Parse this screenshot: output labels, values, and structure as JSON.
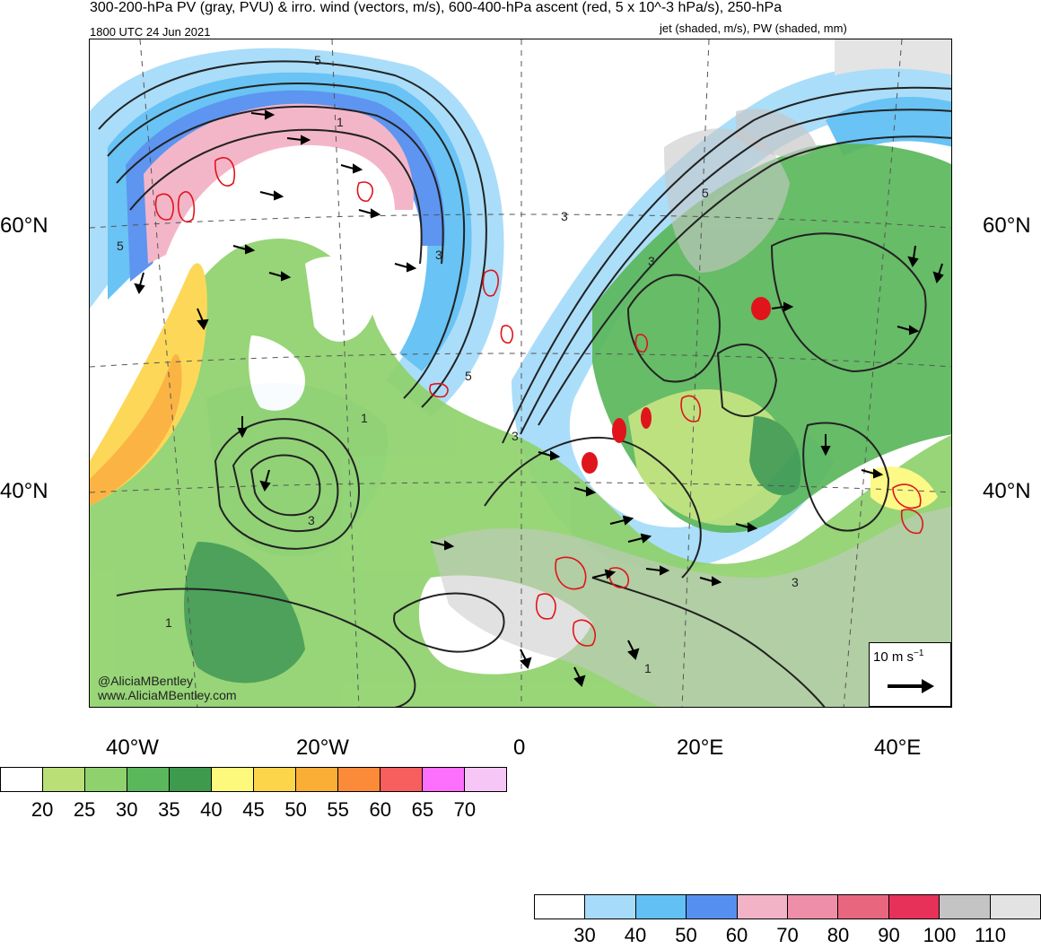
{
  "header": {
    "title_line1": "300-200-hPa PV (gray, PVU) & irro. wind (vectors, m/s), 600-400-hPa ascent (red, 5 x 10^-3 hPa/s), 250-hPa",
    "valid_time": "1800 UTC 24 Jun 2021",
    "title_line2": "jet (shaded, m/s), PW (shaded, mm)"
  },
  "axes": {
    "lat_left_60": "60°N",
    "lat_left_40": "40°N",
    "lat_right_60": "60°N",
    "lat_right_40": "40°N",
    "lon_40w": "40°W",
    "lon_20w": "20°W",
    "lon_0": "0",
    "lon_20e": "20°E",
    "lon_40e": "40°E"
  },
  "credits": {
    "handle": "@AliciaMBentley",
    "website": "www.AliciaMBentley.com"
  },
  "reference_vector": {
    "label": "10 m s",
    "exponent": "−1"
  },
  "contour_labels": [
    "5",
    "1",
    "5",
    "3",
    "5",
    "3",
    "3",
    "5",
    "1",
    "3",
    "3",
    "1",
    "1",
    "3"
  ],
  "colors": {
    "pw_20": "#ffffff",
    "pw_25": "#b9df76",
    "pw_30": "#8fd26d",
    "pw_35": "#5bb75b",
    "pw_40": "#3e9a4d",
    "pw_45": "#fcf97d",
    "pw_50": "#fdd54a",
    "pw_55": "#fbae35",
    "pw_60": "#fb8a39",
    "pw_65": "#f75e5e",
    "pw_70": "#fd6ffd",
    "pw_70p": "#f6c6f6",
    "jet_30": "#a6dcf9",
    "jet_40": "#62c0f4",
    "jet_50": "#4aaef0",
    "jet_60": "#5590f0",
    "jet_70": "#f3b3c6",
    "jet_80": "#ee8ea8",
    "jet_90": "#e8677f",
    "jet_100": "#e83159",
    "jet_110": "#c4c4c4",
    "jet_110p": "#e3e3e3",
    "land_gray": "#c8c8c8",
    "ascent_red": "#e0141b",
    "pv_contour": "#222222"
  },
  "pw_colorbar": {
    "colors": [
      "#ffffff",
      "#b9df76",
      "#8fd26d",
      "#5bb75b",
      "#3e9a4d",
      "#fcf97d",
      "#fdd54a",
      "#fbae35",
      "#fb8a39",
      "#f75e5e",
      "#fd6ffd",
      "#f6c6f6"
    ],
    "ticks": [
      "20",
      "25",
      "30",
      "35",
      "40",
      "45",
      "50",
      "55",
      "60",
      "65",
      "70"
    ]
  },
  "jet_colorbar": {
    "colors": [
      "#ffffff",
      "#a6dcf9",
      "#62c0f4",
      "#5590f0",
      "#f3b3c6",
      "#ee8ea8",
      "#e8677f",
      "#e83159",
      "#c4c4c4",
      "#e3e3e3"
    ],
    "ticks": [
      "30",
      "40",
      "50",
      "60",
      "70",
      "80",
      "90",
      "100",
      "110"
    ]
  }
}
